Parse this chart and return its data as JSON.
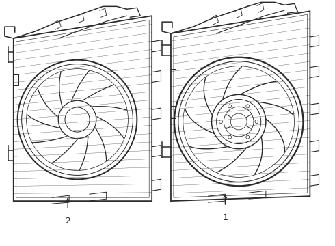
{
  "background_color": "#ffffff",
  "line_color": "#2a2a2a",
  "line_width": 0.9,
  "label1": "1",
  "label2": "2",
  "fig_width": 4.9,
  "fig_height": 3.6,
  "dpi": 100
}
